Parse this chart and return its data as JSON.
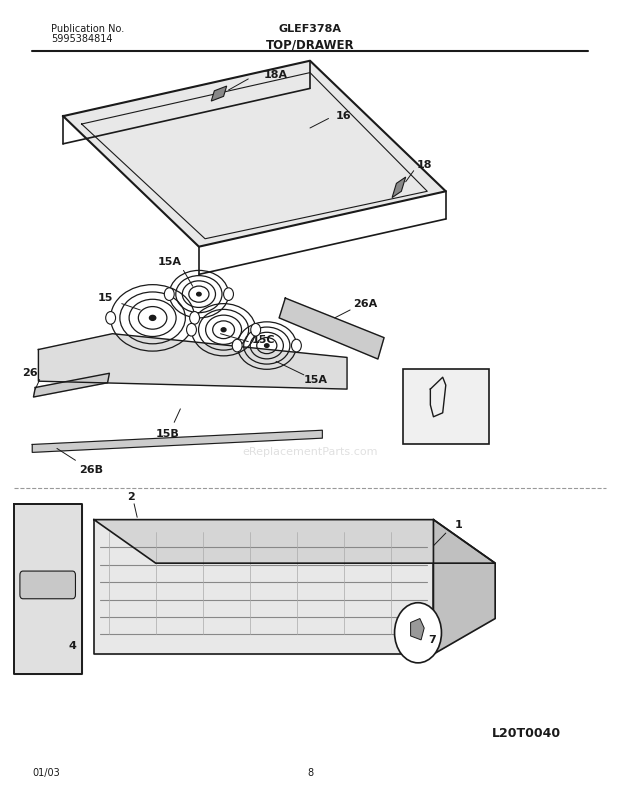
{
  "title": "TOP/DRAWER",
  "pub_no_label": "Publication No.",
  "pub_no": "5995384814",
  "model": "GLEF378A",
  "diagram_code": "L20T0040",
  "date": "01/03",
  "page": "8",
  "bg_color": "#ffffff",
  "line_color": "#1a1a1a",
  "text_color": "#1a1a1a",
  "watermark": "eReplacementParts.com"
}
